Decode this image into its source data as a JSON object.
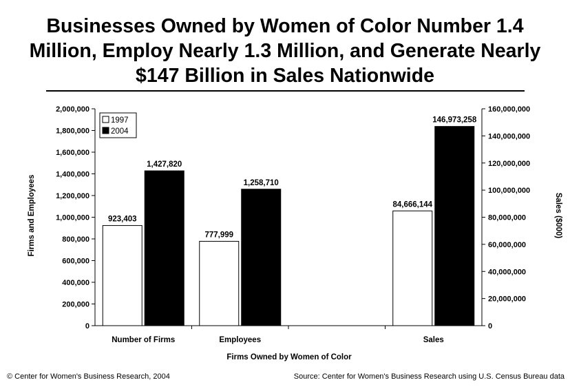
{
  "title": "Businesses Owned by Women of Color Number 1.4 Million, Employ Nearly 1.3 Million, and Generate Nearly $147 Billion in Sales Nationwide",
  "footer": {
    "left": "© Center for Women's Business Research, 2004",
    "right": "Source: Center for Women's Business Research using U.S. Census Bureau data"
  },
  "chart_data": {
    "type": "bar",
    "categories": [
      "Number of Firms",
      "Employees",
      "Sales"
    ],
    "series": [
      {
        "name": "1997",
        "values": [
          923403,
          777999,
          84666144
        ],
        "labels": [
          "923,403",
          "777,999",
          "84,666,144"
        ],
        "color": "#ffffff"
      },
      {
        "name": "2004",
        "values": [
          1427820,
          1258710,
          146973258
        ],
        "labels": [
          "1,427,820",
          "1,258,710",
          "146,973,258"
        ],
        "color": "#000000"
      }
    ],
    "xlabel": "Firms Owned by Women of Color",
    "ylabel": "Firms and Employees",
    "y2label": "Sales ($000)",
    "ylim": [
      0,
      2000000
    ],
    "y2lim": [
      0,
      160000000
    ],
    "yticks": [
      "0",
      "200,000",
      "400,000",
      "600,000",
      "800,000",
      "1,000,000",
      "1,200,000",
      "1,400,000",
      "1,600,000",
      "1,800,000",
      "2,000,000"
    ],
    "y2ticks": [
      "0",
      "20,000,000",
      "40,000,000",
      "60,000,000",
      "80,000,000",
      "100,000,000",
      "120,000,000",
      "140,000,000",
      "160,000,000"
    ],
    "secondary_axis_categories": [
      "Sales"
    ],
    "legend_position": "top-left",
    "grid": false
  }
}
